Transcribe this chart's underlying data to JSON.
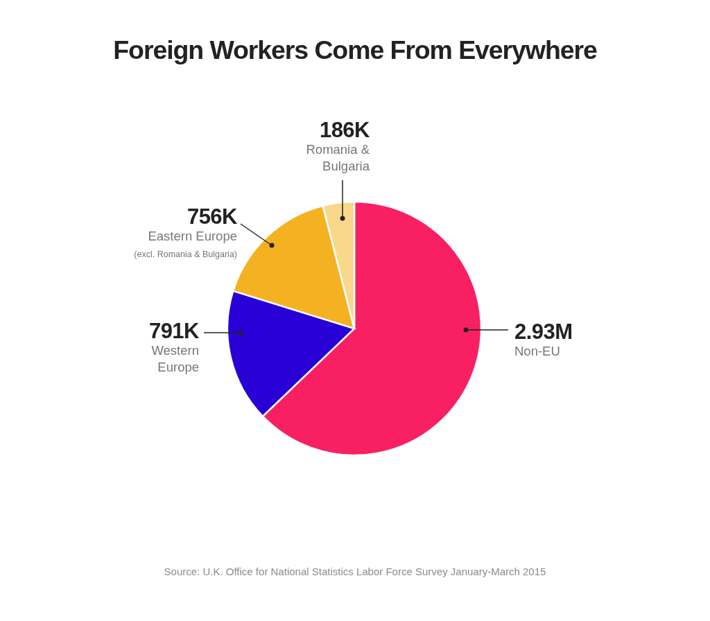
{
  "chart_data": {
    "type": "pie",
    "title": "Foreign Workers Come From Everywhere",
    "categories": [
      "Non-EU",
      "Western Europe",
      "Eastern Europe (excl. Romania & Bulgaria)",
      "Romania & Bulgaria"
    ],
    "values": [
      2930000,
      791000,
      756000,
      186000
    ],
    "value_labels": [
      "2.93M",
      "791K",
      "756K",
      "186K"
    ],
    "colors": [
      "#f91f63",
      "#2900d5",
      "#f4b223",
      "#f9d88b"
    ],
    "annotations": [
      "Source: U.K. Office for National Statistics Labor Force Survey January-March 2015"
    ]
  }
}
